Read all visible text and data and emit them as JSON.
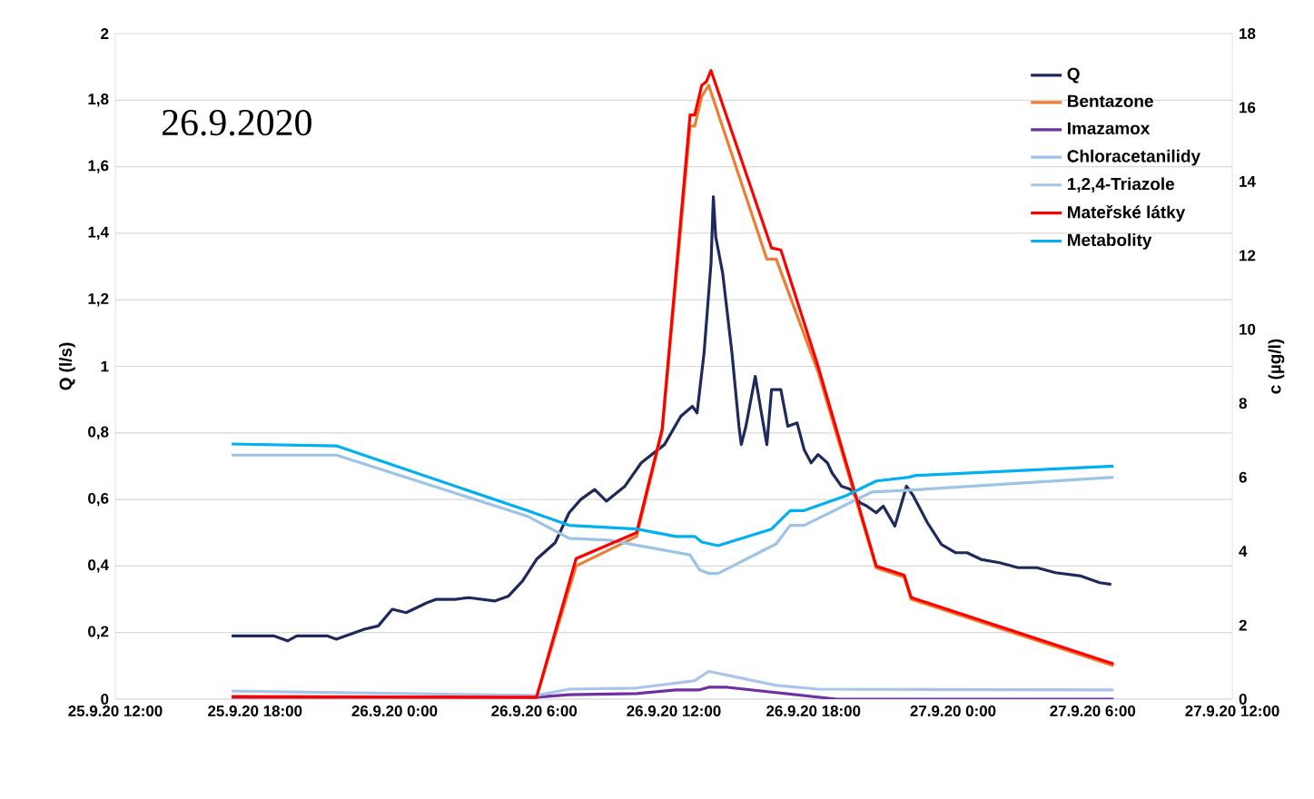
{
  "chart_data": {
    "type": "line",
    "annotations": [
      "26.9.2020"
    ],
    "ylabel": "Q (l/s)",
    "y2label": "c (µg/l)",
    "xlim": [
      "2020-09-25T12:00",
      "2020-09-27T12:00"
    ],
    "xticks": [
      {
        "value": "2020-09-25T12:00",
        "label": "25.9.20 12:00"
      },
      {
        "value": "2020-09-25T18:00",
        "label": "25.9.20 18:00"
      },
      {
        "value": "2020-09-26T00:00",
        "label": "26.9.20 0:00"
      },
      {
        "value": "2020-09-26T06:00",
        "label": "26.9.20 6:00"
      },
      {
        "value": "2020-09-26T12:00",
        "label": "26.9.20 12:00"
      },
      {
        "value": "2020-09-26T18:00",
        "label": "26.9.20 18:00"
      },
      {
        "value": "2020-09-27T00:00",
        "label": "27.9.20 0:00"
      },
      {
        "value": "2020-09-27T06:00",
        "label": "27.9.20 6:00"
      },
      {
        "value": "2020-09-27T12:00",
        "label": "27.9.20 12:00"
      }
    ],
    "ylim": [
      0,
      2
    ],
    "yticks": [
      0,
      {
        "value": 0.2,
        "label": "0,2"
      },
      {
        "value": 0.4,
        "label": "0,4"
      },
      {
        "value": 0.6,
        "label": "0,6"
      },
      {
        "value": 0.8,
        "label": "0,8"
      },
      1,
      {
        "value": 1.2,
        "label": "1,2"
      },
      {
        "value": 1.4,
        "label": "1,4"
      },
      {
        "value": 1.6,
        "label": "1,6"
      },
      {
        "value": 1.8,
        "label": "1,8"
      },
      2
    ],
    "y2lim": [
      0,
      18
    ],
    "y2ticks": [
      0,
      2,
      4,
      6,
      8,
      10,
      12,
      14,
      16,
      18
    ],
    "grid": "y",
    "legend": "top right",
    "marker": "none",
    "series": [
      {
        "name": "Q",
        "color": "#1f2a5c",
        "x": [
          "2020-09-25T17:00",
          "2020-09-25T17:36",
          "2020-09-25T18:48",
          "2020-09-25T19:24",
          "2020-09-25T19:48",
          "2020-09-25T21:06",
          "2020-09-25T21:30",
          "2020-09-25T22:42",
          "2020-09-25T23:18",
          "2020-09-25T23:54",
          "2020-09-26T00:30",
          "2020-09-26T01:24",
          "2020-09-26T01:48",
          "2020-09-26T02:36",
          "2020-09-26T03:12",
          "2020-09-26T04:18",
          "2020-09-26T04:54",
          "2020-09-26T05:30",
          "2020-09-26T06:06",
          "2020-09-26T06:54",
          "2020-09-26T07:30",
          "2020-09-26T08:00",
          "2020-09-26T08:36",
          "2020-09-26T09:06",
          "2020-09-26T09:54",
          "2020-09-26T10:36",
          "2020-09-26T11:36",
          "2020-09-26T12:18",
          "2020-09-26T12:48",
          "2020-09-26T13:00",
          "2020-09-26T13:18",
          "2020-09-26T13:36",
          "2020-09-26T13:42",
          "2020-09-26T13:48",
          "2020-09-26T14:06",
          "2020-09-26T14:30",
          "2020-09-26T14:48",
          "2020-09-26T14:54",
          "2020-09-26T15:06",
          "2020-09-26T15:30",
          "2020-09-26T15:48",
          "2020-09-26T16:00",
          "2020-09-26T16:12",
          "2020-09-26T16:36",
          "2020-09-26T16:54",
          "2020-09-26T17:18",
          "2020-09-26T17:36",
          "2020-09-26T17:54",
          "2020-09-26T18:12",
          "2020-09-26T18:36",
          "2020-09-26T18:48",
          "2020-09-26T19:12",
          "2020-09-26T19:36",
          "2020-09-26T20:00",
          "2020-09-26T20:18",
          "2020-09-26T20:42",
          "2020-09-26T21:00",
          "2020-09-26T21:30",
          "2020-09-26T22:00",
          "2020-09-26T22:18",
          "2020-09-26T22:54",
          "2020-09-26T23:30",
          "2020-09-27T00:06",
          "2020-09-27T00:36",
          "2020-09-27T01:12",
          "2020-09-27T02:00",
          "2020-09-27T02:48",
          "2020-09-27T03:36",
          "2020-09-27T04:24",
          "2020-09-27T05:30",
          "2020-09-27T06:18",
          "2020-09-27T06:48"
        ],
        "values": [
          0.19,
          0.19,
          0.19,
          0.175,
          0.19,
          0.19,
          0.18,
          0.21,
          0.22,
          0.27,
          0.26,
          0.29,
          0.3,
          0.3,
          0.305,
          0.295,
          0.31,
          0.355,
          0.42,
          0.47,
          0.56,
          0.6,
          0.63,
          0.595,
          0.64,
          0.71,
          0.765,
          0.85,
          0.88,
          0.86,
          1.04,
          1.31,
          1.51,
          1.39,
          1.28,
          1.04,
          0.82,
          0.765,
          0.82,
          0.97,
          0.845,
          0.765,
          0.93,
          0.93,
          0.82,
          0.83,
          0.75,
          0.71,
          0.735,
          0.71,
          0.68,
          0.64,
          0.63,
          0.59,
          0.58,
          0.56,
          0.58,
          0.52,
          0.64,
          0.61,
          0.53,
          0.465,
          0.44,
          0.44,
          0.42,
          0.41,
          0.395,
          0.395,
          0.38,
          0.37,
          0.35,
          0.345
        ]
      },
      {
        "name": "Bentazone",
        "color": "#ed7d31",
        "axis": "y2",
        "x": [
          "2020-09-25T17:00",
          "2020-09-26T06:06",
          "2020-09-26T07:48",
          "2020-09-26T10:24",
          "2020-09-26T11:30",
          "2020-09-26T12:42",
          "2020-09-26T12:54",
          "2020-09-26T13:12",
          "2020-09-26T13:30",
          "2020-09-26T16:00",
          "2020-09-26T16:24",
          "2020-09-26T18:12",
          "2020-09-26T20:42",
          "2020-09-26T21:54",
          "2020-09-26T22:12",
          "2020-09-27T06:54"
        ],
        "values": [
          0.05,
          0.05,
          3.6,
          4.4,
          7.25,
          15.5,
          15.5,
          16.3,
          16.6,
          11.9,
          11.9,
          8.85,
          3.55,
          3.3,
          2.7,
          0.9
        ]
      },
      {
        "name": "Imazamox",
        "color": "#7030a0",
        "axis": "y2",
        "x": [
          "2020-09-25T17:00",
          "2020-09-26T06:06",
          "2020-09-26T07:30",
          "2020-09-26T10:24",
          "2020-09-26T12:06",
          "2020-09-26T13:06",
          "2020-09-26T13:30",
          "2020-09-26T14:18",
          "2020-09-26T19:00",
          "2020-09-27T06:54"
        ],
        "values": [
          0.05,
          0.05,
          0.12,
          0.15,
          0.25,
          0.25,
          0.32,
          0.32,
          0,
          0
        ]
      },
      {
        "name": "Chloracetanilidy",
        "color": "#9dc3e6",
        "axis": "y2",
        "x": [
          "2020-09-25T17:00",
          "2020-09-25T21:30",
          "2020-09-26T05:42",
          "2020-09-26T07:30",
          "2020-09-26T09:12",
          "2020-09-26T12:42",
          "2020-09-26T13:06",
          "2020-09-26T13:30",
          "2020-09-26T13:54",
          "2020-09-26T16:24",
          "2020-09-26T17:00",
          "2020-09-26T17:36",
          "2020-09-26T20:30",
          "2020-09-26T22:06",
          "2020-09-27T06:54"
        ],
        "values": [
          6.6,
          6.6,
          4.95,
          4.35,
          4.3,
          3.9,
          3.5,
          3.4,
          3.4,
          4.2,
          4.7,
          4.7,
          5.6,
          5.65,
          6.0
        ]
      },
      {
        "name": "1,2,4-Triazole",
        "color": "#a9c4e8",
        "axis": "y2",
        "x": [
          "2020-09-25T17:00",
          "2020-09-26T06:06",
          "2020-09-26T07:30",
          "2020-09-26T10:24",
          "2020-09-26T12:54",
          "2020-09-26T13:30",
          "2020-09-26T13:54",
          "2020-09-26T16:24",
          "2020-09-26T18:12",
          "2020-09-27T06:54"
        ],
        "values": [
          0.22,
          0.1,
          0.27,
          0.3,
          0.5,
          0.75,
          0.7,
          0.37,
          0.27,
          0.25
        ]
      },
      {
        "name": "Mateřské látky",
        "color": "#ff0000",
        "axis": "y2",
        "x": [
          "2020-09-25T17:00",
          "2020-09-26T06:06",
          "2020-09-26T07:48",
          "2020-09-26T10:24",
          "2020-09-26T11:30",
          "2020-09-26T12:42",
          "2020-09-26T12:54",
          "2020-09-26T13:12",
          "2020-09-26T13:24",
          "2020-09-26T13:36",
          "2020-09-26T16:12",
          "2020-09-26T16:36",
          "2020-09-26T18:12",
          "2020-09-26T20:42",
          "2020-09-26T21:54",
          "2020-09-26T22:12",
          "2020-09-27T06:54"
        ],
        "values": [
          0.07,
          0.05,
          3.8,
          4.5,
          7.3,
          15.8,
          15.8,
          16.6,
          16.7,
          17.0,
          12.2,
          12.15,
          9.0,
          3.6,
          3.35,
          2.75,
          0.95
        ]
      },
      {
        "name": "Metabolity",
        "color": "#00b0f0",
        "axis": "y2",
        "x": [
          "2020-09-25T17:00",
          "2020-09-25T21:30",
          "2020-09-26T05:42",
          "2020-09-26T07:30",
          "2020-09-26T10:24",
          "2020-09-26T12:06",
          "2020-09-26T12:54",
          "2020-09-26T13:12",
          "2020-09-26T13:54",
          "2020-09-26T16:12",
          "2020-09-26T17:00",
          "2020-09-26T17:36",
          "2020-09-26T19:24",
          "2020-09-26T20:42",
          "2020-09-26T22:06",
          "2020-09-26T22:24",
          "2020-09-27T06:54"
        ],
        "values": [
          6.9,
          6.85,
          5.1,
          4.7,
          4.6,
          4.4,
          4.4,
          4.25,
          4.15,
          4.6,
          5.1,
          5.1,
          5.5,
          5.9,
          6.0,
          6.05,
          6.3
        ]
      }
    ]
  }
}
